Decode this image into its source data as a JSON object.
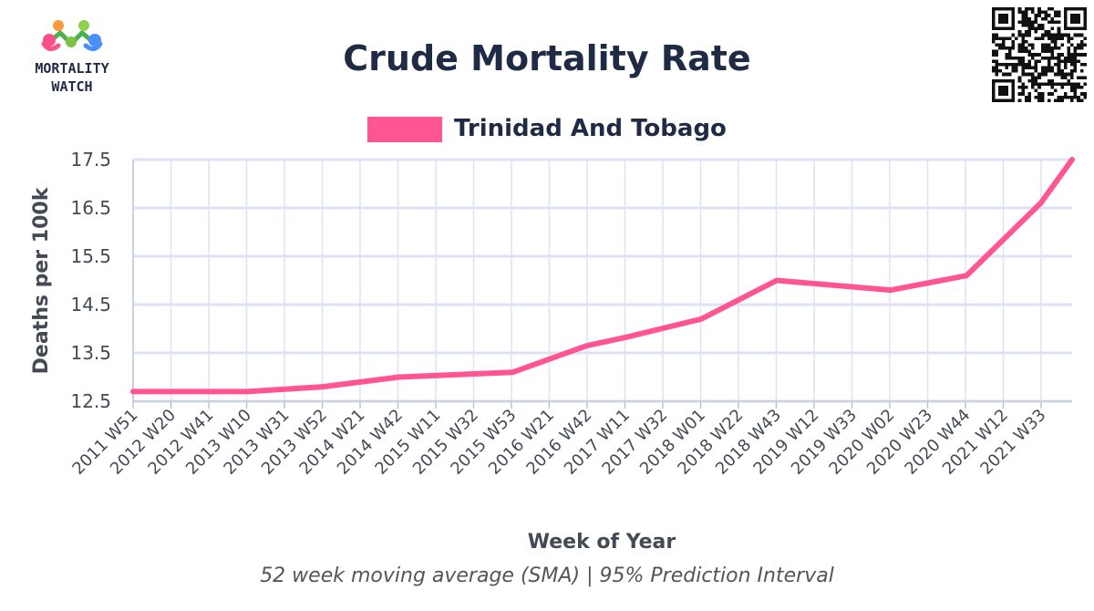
{
  "logo": {
    "line1": "MORTALITY",
    "line2": "WATCH"
  },
  "chart_data": {
    "type": "line",
    "title": "Crude Mortality Rate",
    "subtitle": "52 week moving average (SMA) | 95% Prediction Interval",
    "xlabel": "Week of Year",
    "ylabel": "Deaths per 100k",
    "ylim": [
      12.5,
      17.5
    ],
    "yticks": [
      "12.5",
      "13.5",
      "14.5",
      "15.5",
      "16.5",
      "17.5"
    ],
    "x_tick_labels": [
      "2011 W51",
      "2012 W20",
      "2012 W41",
      "2013 W10",
      "2013 W31",
      "2013 W52",
      "2014 W21",
      "2014 W42",
      "2015 W11",
      "2015 W32",
      "2015 W53",
      "2016 W21",
      "2016 W42",
      "2017 W11",
      "2017 W32",
      "2018 W01",
      "2018 W22",
      "2018 W43",
      "2019 W12",
      "2019 W33",
      "2020 W02",
      "2020 W23",
      "2020 W44",
      "2021 W12",
      "2021 W33"
    ],
    "grid": true,
    "legend_position": "top-center",
    "series": [
      {
        "name": "Trinidad And Tobago",
        "color": "#ff5592",
        "points": [
          [
            "2011 W51",
            12.7
          ],
          [
            "2012 W41",
            12.7
          ],
          [
            "2013 W10",
            12.7
          ],
          [
            "2013 W52",
            12.8
          ],
          [
            "2014 W42",
            13.0
          ],
          [
            "2015 W53",
            13.1
          ],
          [
            "2016 W42",
            13.65
          ],
          [
            "2017 W11",
            13.82
          ],
          [
            "2018 W01",
            14.2
          ],
          [
            "2018 W43",
            15.0
          ],
          [
            "2020 W02",
            14.8
          ],
          [
            "2020 W44",
            15.1
          ],
          [
            "2021 W33",
            16.6
          ],
          [
            "2021 W52",
            17.5
          ]
        ]
      }
    ]
  }
}
